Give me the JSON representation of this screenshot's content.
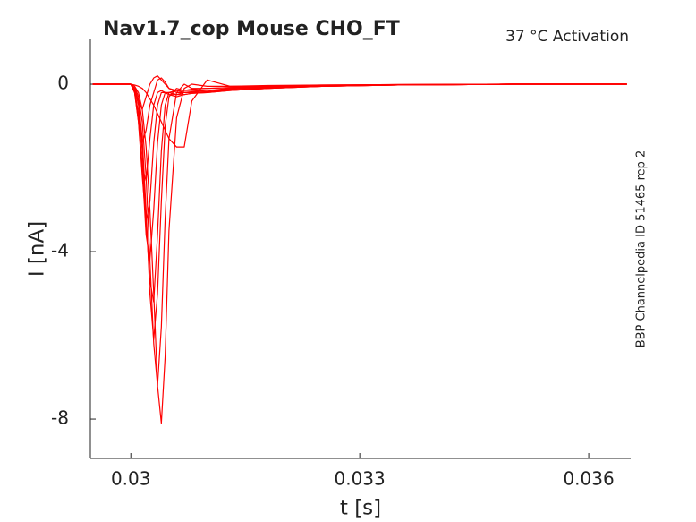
{
  "chart_data": {
    "type": "line",
    "title": "Nav1.7_cop  Mouse  CHO_FT",
    "subtitle": "37 °C  Activation",
    "annotation": "BBP Channelpedia ID 51465 rep 2",
    "xlabel": "t [s]",
    "ylabel": "I [nA]",
    "color": "#ff0000",
    "x": [
      0.0295,
      0.03,
      0.03005,
      0.0301,
      0.03015,
      0.0302,
      0.03025,
      0.0303,
      0.03035,
      0.0304,
      0.03045,
      0.0305,
      0.0306,
      0.0307,
      0.0308,
      0.031,
      0.0313,
      0.0318,
      0.0325,
      0.0335,
      0.035,
      0.0365
    ],
    "series": [
      {
        "values": [
          0,
          0,
          -0.05,
          -0.2,
          -0.6,
          -1.5,
          -3.0,
          -5.0,
          -7.2,
          -8.1,
          -6.5,
          -3.5,
          -0.8,
          -0.1,
          0,
          -0.05,
          -0.05,
          -0.05,
          -0.03,
          -0.02,
          0,
          0
        ]
      },
      {
        "values": [
          0,
          0,
          -0.05,
          -0.3,
          -0.9,
          -2.2,
          -4.2,
          -6.2,
          -7.2,
          -5.8,
          -3.2,
          -1.3,
          -0.2,
          0,
          -0.1,
          -0.1,
          -0.08,
          -0.06,
          -0.04,
          -0.02,
          0,
          0
        ]
      },
      {
        "values": [
          0,
          0,
          -0.1,
          -0.4,
          -1.3,
          -3.0,
          -5.0,
          -6.1,
          -5.0,
          -2.8,
          -1.0,
          -0.3,
          -0.1,
          -0.15,
          -0.15,
          -0.15,
          -0.12,
          -0.08,
          -0.05,
          -0.02,
          0,
          0
        ]
      },
      {
        "values": [
          0,
          0,
          -0.1,
          -0.5,
          -1.6,
          -3.3,
          -4.7,
          -5.2,
          -3.6,
          -1.6,
          -0.5,
          -0.2,
          -0.15,
          -0.2,
          -0.2,
          -0.18,
          -0.15,
          -0.1,
          -0.05,
          -0.02,
          0,
          0
        ]
      },
      {
        "values": [
          0,
          0,
          -0.15,
          -0.7,
          -2.0,
          -3.6,
          -4.2,
          -3.0,
          -1.4,
          -0.5,
          -0.2,
          -0.2,
          -0.25,
          -0.25,
          -0.22,
          -0.2,
          -0.15,
          -0.1,
          -0.05,
          -0.02,
          0,
          0
        ]
      },
      {
        "values": [
          0,
          0,
          -0.2,
          -0.9,
          -2.2,
          -3.3,
          -2.8,
          -1.4,
          -0.5,
          -0.2,
          -0.2,
          -0.25,
          -0.3,
          -0.25,
          -0.22,
          -0.2,
          -0.15,
          -0.1,
          -0.05,
          -0.02,
          0,
          0
        ]
      },
      {
        "values": [
          0,
          0,
          -0.2,
          -0.9,
          -2.0,
          -2.3,
          -1.3,
          -0.5,
          -0.2,
          -0.15,
          -0.2,
          -0.25,
          -0.25,
          -0.2,
          -0.2,
          -0.18,
          -0.12,
          -0.08,
          -0.04,
          -0.02,
          0,
          0
        ]
      },
      {
        "values": [
          0,
          0,
          -0.2,
          -0.8,
          -1.4,
          -1.1,
          -0.5,
          -0.2,
          0.1,
          0.15,
          0.05,
          -0.1,
          -0.2,
          -0.2,
          -0.18,
          -0.15,
          -0.1,
          -0.06,
          -0.03,
          -0.01,
          0,
          0
        ]
      },
      {
        "values": [
          0,
          0,
          -0.1,
          -0.4,
          -0.6,
          -0.3,
          0.0,
          0.15,
          0.2,
          0.1,
          0,
          -0.1,
          -0.15,
          -0.15,
          -0.12,
          -0.1,
          -0.08,
          -0.05,
          -0.02,
          -0.01,
          0,
          0
        ]
      },
      {
        "values": [
          0,
          0,
          -0.02,
          -0.05,
          -0.1,
          -0.2,
          -0.35,
          -0.5,
          -0.7,
          -0.9,
          -1.1,
          -1.3,
          -1.5,
          -1.5,
          -0.4,
          0.1,
          -0.05,
          -0.03,
          -0.02,
          -0.01,
          0,
          0
        ]
      }
    ],
    "xlim": [
      0.02947,
      0.03655
    ],
    "xticks": [
      0.03,
      0.033,
      0.036
    ],
    "ylim": [
      -8.94,
      1.07
    ],
    "yticks": [
      0,
      -4,
      -8
    ]
  }
}
